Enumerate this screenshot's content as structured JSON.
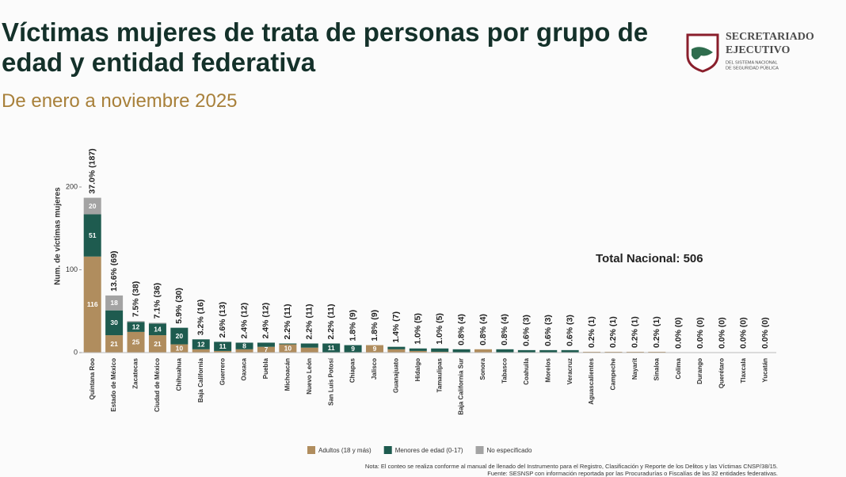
{
  "header": {
    "title": "Víctimas mujeres de trata de personas por grupo de edad y entidad federativa",
    "subtitle": "De enero a noviembre 2025",
    "logo": [
      "SECRETARIADO",
      "EJECUTIVO",
      "DEL SISTEMA NACIONAL",
      "DE SEGURIDAD PÚBLICA"
    ]
  },
  "chart_data": {
    "type": "stacked_bar",
    "y_label": "Num. de víctimas mujeres",
    "annotation": "Total Nacional: 506",
    "categories": [
      "Quintana Roo",
      "Estado de México",
      "Zacatecas",
      "Ciudad de México",
      "Chihuahua",
      "Baja California",
      "Guerrero",
      "Oaxaca",
      "Puebla",
      "Michoacán",
      "Nuevo León",
      "San Luis Potosí",
      "Chiapas",
      "Jalisco",
      "Guanajuato",
      "Hidalgo",
      "Tamaulipas",
      "Baja California Sur",
      "Sonora",
      "Tabasco",
      "Coahuila",
      "Morelos",
      "Veracruz",
      "Aguascalientes",
      "Campeche",
      "Nayarit",
      "Sinaloa",
      "Colima",
      "Durango",
      "Querétaro",
      "Tlaxcala",
      "Yucatán"
    ],
    "top_labels": [
      "37.0% (187)",
      "13.6% (69)",
      "7.5% (38)",
      "7.1% (36)",
      "5.9% (30)",
      "3.2% (16)",
      "2.6% (13)",
      "2.4% (12)",
      "2.4% (12)",
      "2.2% (11)",
      "2.2% (11)",
      "2.2% (11)",
      "1.8% (9)",
      "1.8% (9)",
      "1.4% (7)",
      "1.0% (5)",
      "1.0% (5)",
      "0.8% (4)",
      "0.8% (4)",
      "0.8% (4)",
      "0.6% (3)",
      "0.6% (3)",
      "0.6% (3)",
      "0.2% (1)",
      "0.2% (1)",
      "0.2% (1)",
      "0.2% (1)",
      "0.0% (0)",
      "0.0% (0)",
      "0.0% (0)",
      "0.0% (0)",
      "0.0% (0)"
    ],
    "series": [
      {
        "name": "Adultos (18 y más)",
        "color": "#b08d5e",
        "values": [
          116,
          21,
          25,
          21,
          10,
          4,
          2,
          4,
          7,
          10,
          6,
          0,
          0,
          9,
          4,
          2,
          1,
          0,
          4,
          0,
          0,
          0,
          0,
          1,
          1,
          1,
          1,
          0,
          0,
          0,
          0,
          0
        ]
      },
      {
        "name": "Menores de edad (0-17)",
        "color": "#1e5b4f",
        "values": [
          51,
          30,
          12,
          14,
          20,
          12,
          11,
          8,
          5,
          1,
          5,
          11,
          9,
          0,
          3,
          3,
          4,
          4,
          0,
          4,
          3,
          3,
          3,
          0,
          0,
          0,
          0,
          0,
          0,
          0,
          0,
          0
        ]
      },
      {
        "name": "No especificado",
        "color": "#a3a3a3",
        "values": [
          20,
          18,
          1,
          1,
          0,
          0,
          0,
          0,
          0,
          0,
          0,
          0,
          0,
          0,
          0,
          0,
          0,
          0,
          0,
          0,
          0,
          0,
          0,
          0,
          0,
          0,
          0,
          0,
          0,
          0,
          0,
          0
        ]
      }
    ],
    "ylim": [
      0,
      200
    ],
    "yticks": [
      0,
      100,
      200
    ],
    "grid": false
  },
  "footer": {
    "note": "Nota: El conteo se realiza conforme al manual de llenado del Instrumento para el Registro, Clasificación y Reporte de los Delitos y las Víctimas CNSP/38/15.",
    "source": "Fuente: SESNSP con información reportada por las Procuradurías o Fiscalías de las 32 entidades federativas."
  }
}
